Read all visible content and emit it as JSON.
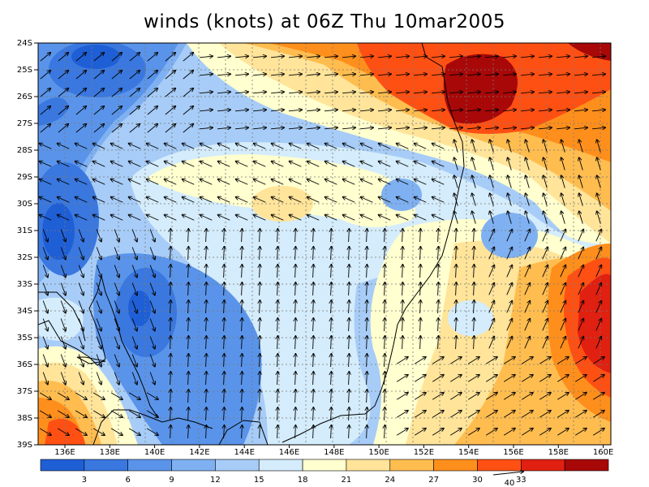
{
  "title": "winds (knots) at 06Z Thu 10mar2005",
  "lat_labels": [
    "24S",
    "25S",
    "26S",
    "27S",
    "28S",
    "29S",
    "30S",
    "31S",
    "32S",
    "33S",
    "34S",
    "35S",
    "36S",
    "37S",
    "38S",
    "39S"
  ],
  "lon_labels": [
    "136E",
    "138E",
    "140E",
    "142E",
    "144E",
    "146E",
    "148E",
    "150E",
    "152E",
    "154E",
    "156E",
    "158E",
    "160E"
  ],
  "colorbar": {
    "tick_labels": [
      "3",
      "6",
      "9",
      "12",
      "15",
      "18",
      "21",
      "24",
      "27",
      "30",
      "33"
    ],
    "colors": [
      "#1f5fd6",
      "#3a78e0",
      "#5a94ea",
      "#7fb1f2",
      "#a7ccf7",
      "#d4ecfb",
      "#ffffcf",
      "#ffe49a",
      "#ffbd50",
      "#ff8f1c",
      "#ff5014",
      "#e02010",
      "#a80808"
    ],
    "vector_reference_label": "40"
  },
  "fill_colors": {
    "blue_dark": "#1f5fd6",
    "blue": "#3a78e0",
    "blue_mid": "#5a94ea",
    "blue_light": "#7fb1f2",
    "blue_pale": "#a7ccf7",
    "cyan_pale": "#d4ecfb",
    "cream": "#ffffcf",
    "yellow": "#ffe49a",
    "orange_light": "#ffbd50",
    "orange": "#ff8f1c",
    "orange_red": "#ff5014",
    "red": "#e02010",
    "dark_red": "#a80808"
  }
}
